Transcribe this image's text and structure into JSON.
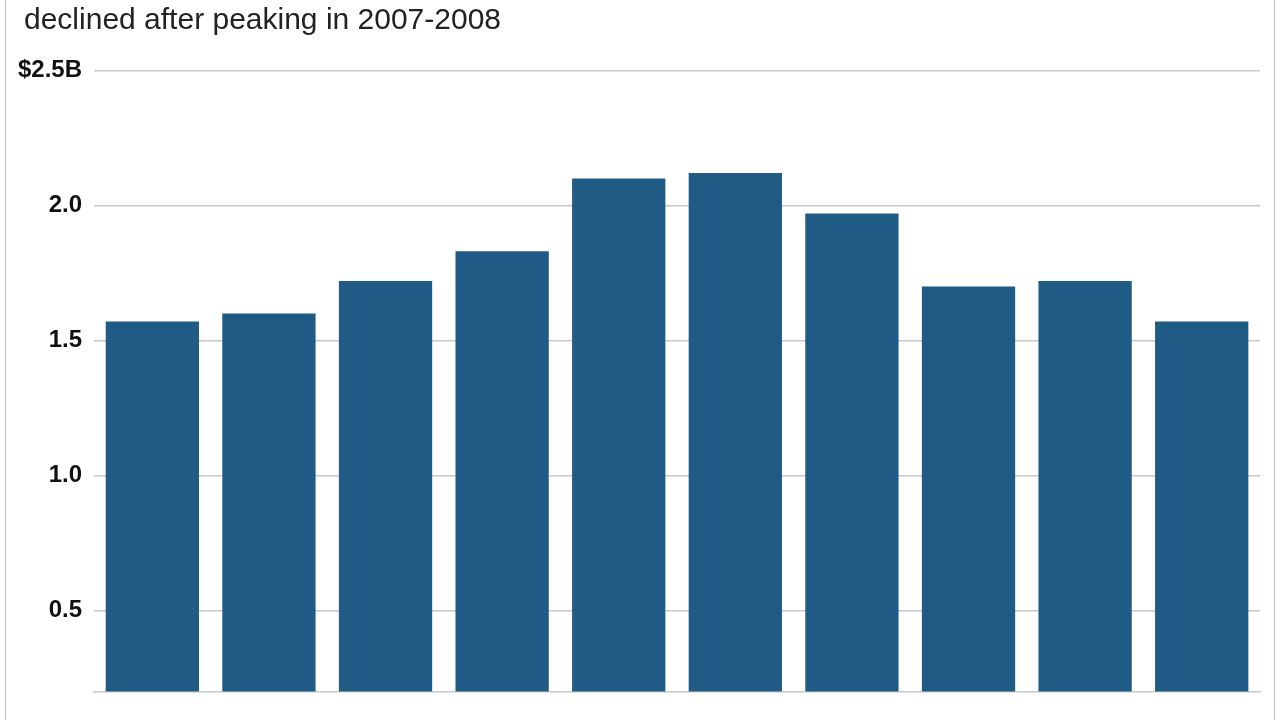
{
  "chart_data": {
    "type": "bar",
    "title": "declined after peaking in 2007-2008",
    "categories": [
      null,
      null,
      null,
      null,
      null,
      null,
      null,
      null,
      null,
      null
    ],
    "values": [
      1.57,
      1.6,
      1.72,
      1.83,
      2.1,
      2.12,
      1.97,
      1.7,
      1.72,
      1.57
    ],
    "color": "#1f5b85",
    "ylim": [
      0.2,
      2.5
    ],
    "yticks": [
      {
        "value": 0.5,
        "label": "0.5"
      },
      {
        "value": 1,
        "label": "1.0"
      },
      {
        "value": 1.5,
        "label": "1.5"
      },
      {
        "value": 2,
        "label": "2.0"
      },
      {
        "value": 2.5,
        "label": "$2.5B"
      }
    ],
    "grid": "y",
    "legend": false
  }
}
